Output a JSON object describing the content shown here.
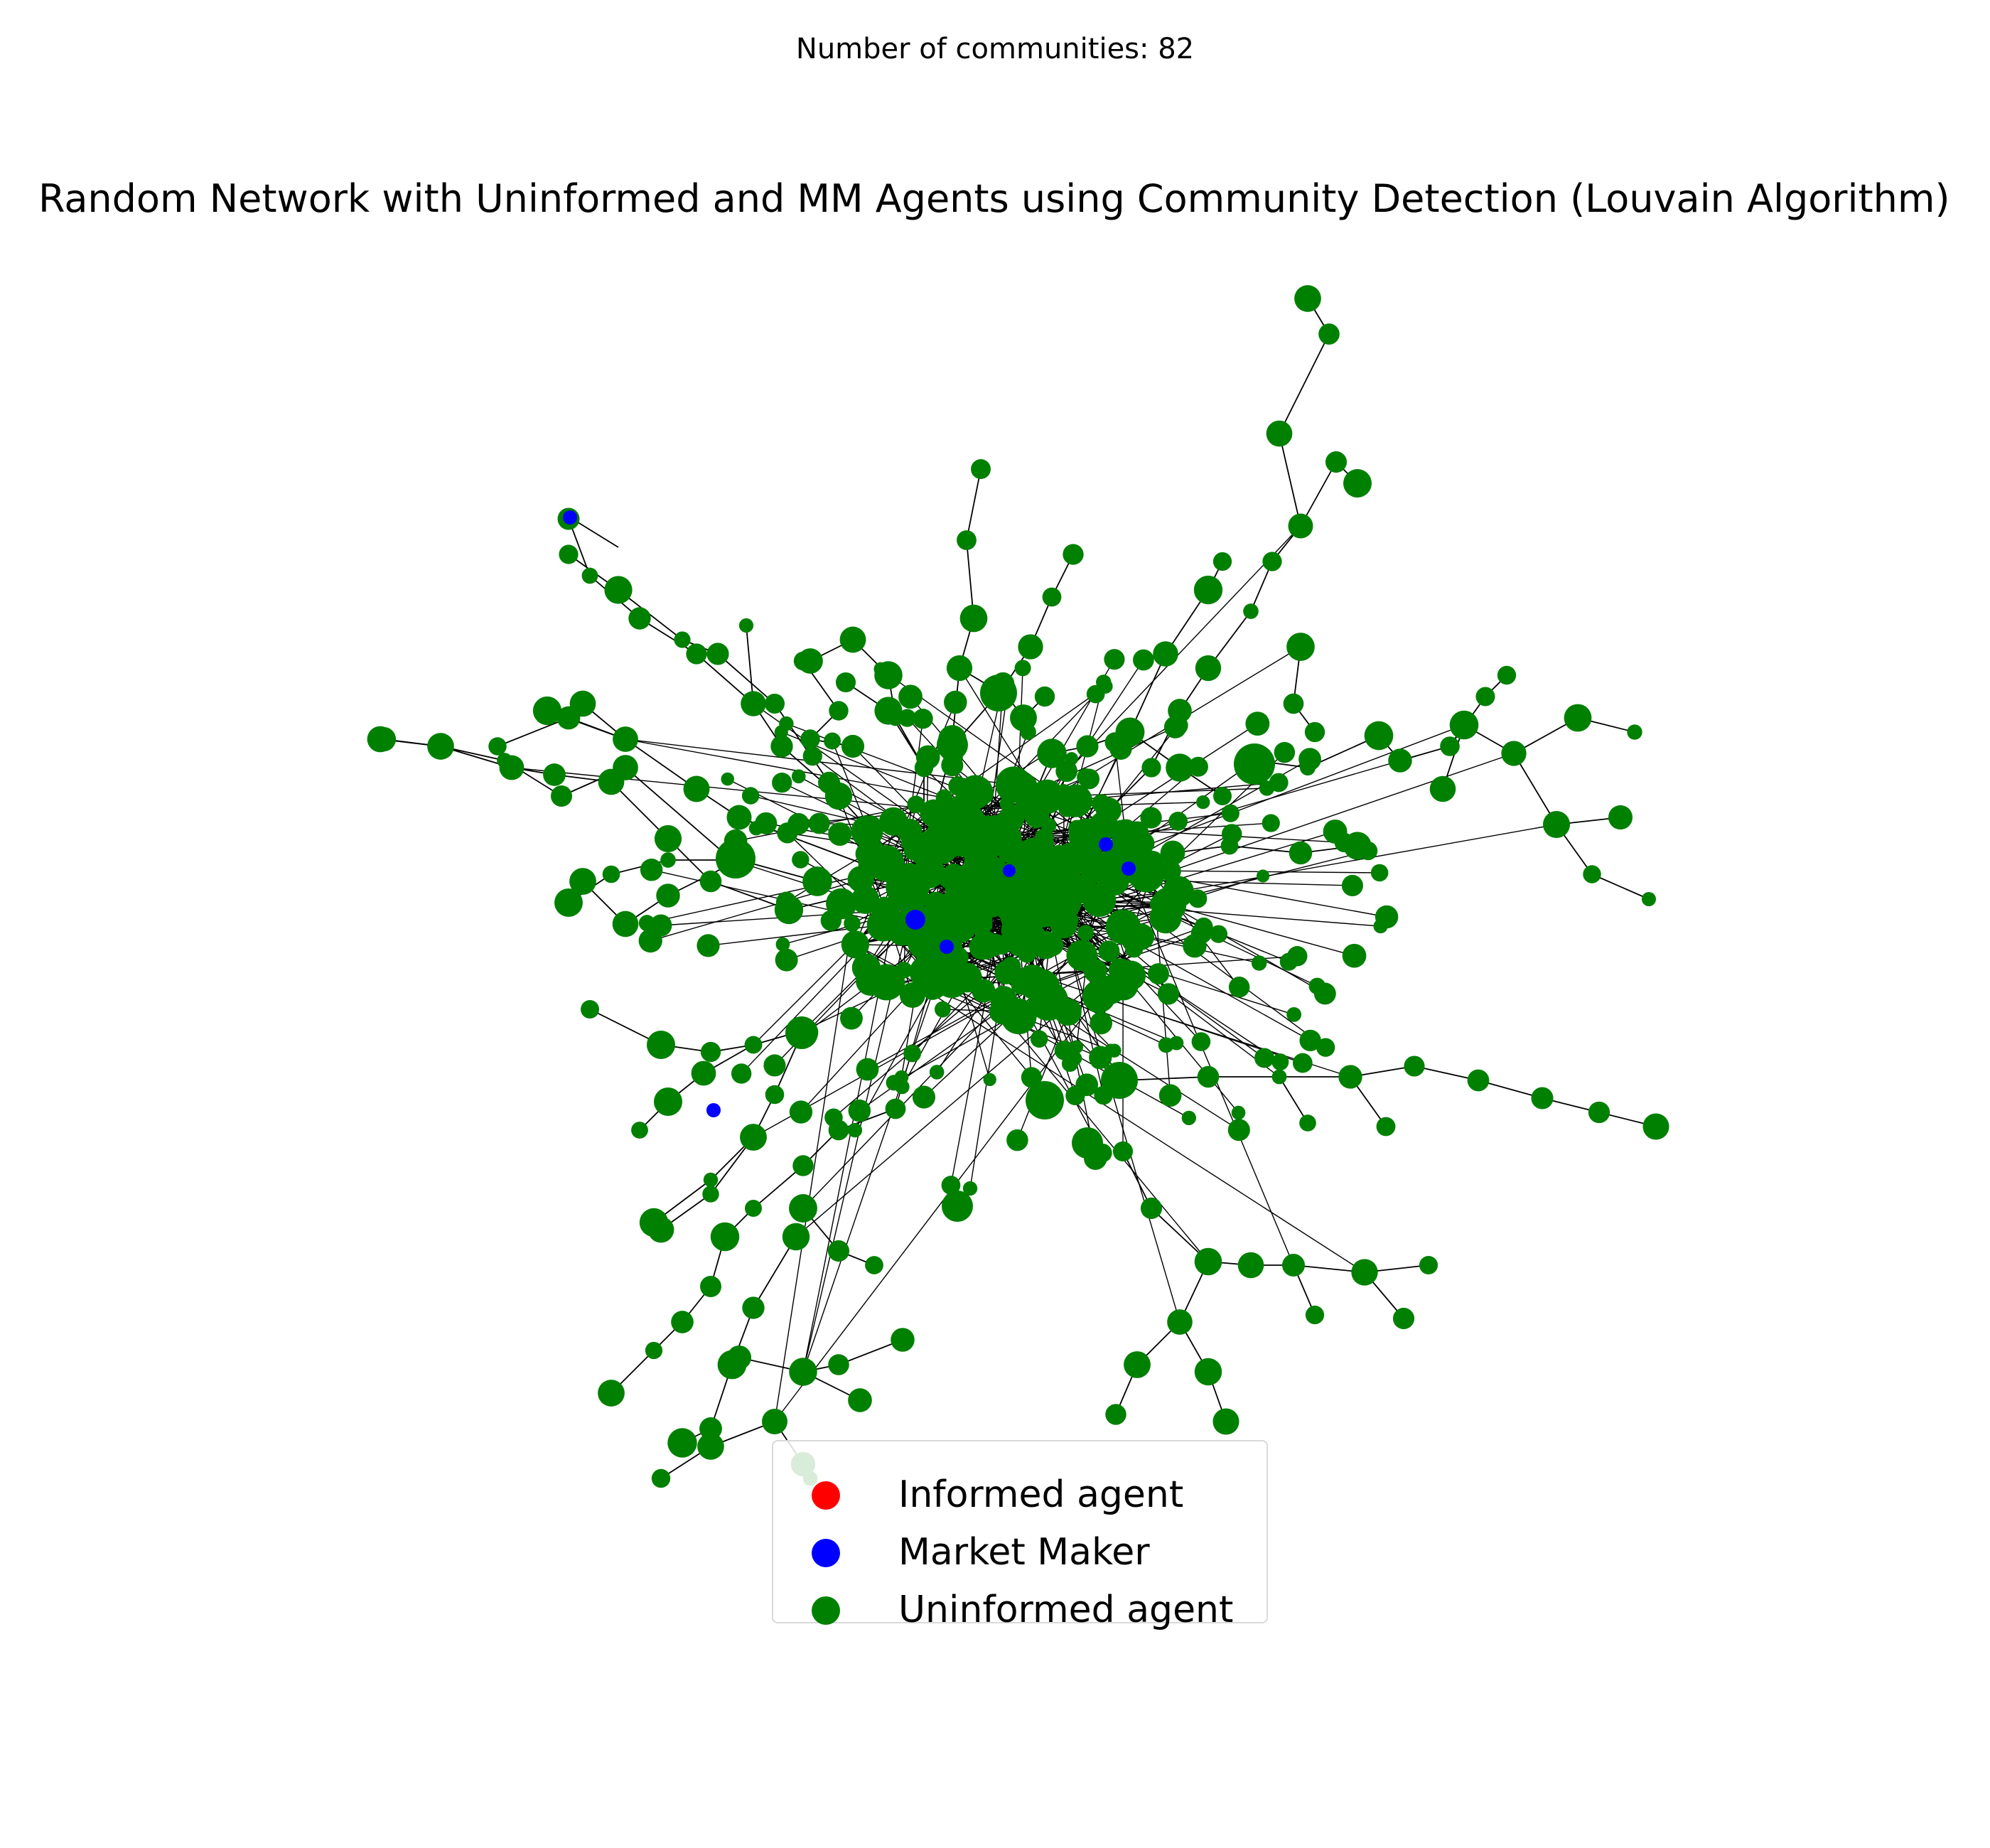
{
  "suptitle": "Number of communities: 82",
  "title": "Random Network with Uninformed and MM Agents using Community Detection (Louvain Algorithm)",
  "colors": {
    "informed": "#ff0000",
    "market_maker": "#0000ff",
    "uninformed": "#008000",
    "edge": "#000000"
  },
  "legend": [
    {
      "label": "Informed agent",
      "color": "#ff0000"
    },
    {
      "label": "Market Maker",
      "color": "#0000ff"
    },
    {
      "label": "Uninformed agent",
      "color": "#008000"
    }
  ]
}
